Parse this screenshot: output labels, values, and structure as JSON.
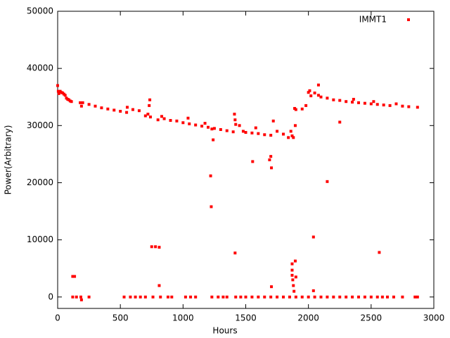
{
  "chart_data": {
    "type": "scatter",
    "x_label": "Hours",
    "y_label": "Power(Arbitrary)",
    "xlim": [
      0,
      3000
    ],
    "ylim": [
      -2000,
      50000
    ],
    "xticks": [
      0,
      500,
      1000,
      1500,
      2000,
      2500,
      3000
    ],
    "yticks": [
      0,
      10000,
      20000,
      30000,
      40000,
      50000
    ],
    "legend": "top-right",
    "x": [
      0,
      5,
      10,
      20,
      30,
      40,
      50,
      60,
      70,
      80,
      90,
      100,
      110,
      180,
      190,
      200,
      250,
      300,
      350,
      400,
      450,
      500,
      550,
      555,
      600,
      650,
      700,
      720,
      730,
      735,
      740,
      800,
      830,
      850,
      900,
      950,
      1000,
      1040,
      1050,
      1100,
      1150,
      1175,
      1200,
      1230,
      1250,
      1300,
      1350,
      1400,
      1410,
      1415,
      1420,
      1450,
      1480,
      1500,
      1550,
      1580,
      1600,
      1650,
      1700,
      1720,
      1750,
      1800,
      1840,
      1860,
      1870,
      1880,
      1890,
      1900,
      1950,
      1980,
      2000,
      2010,
      2020,
      2050,
      2080,
      2100,
      2150,
      2200,
      2250,
      2300,
      2350,
      2360,
      2400,
      2450,
      2500,
      2520,
      2550,
      2600,
      2650,
      2700,
      2750,
      2800,
      2870,
      120,
      135,
      1220,
      1225,
      1240,
      1415,
      1555,
      1690,
      1700,
      1705,
      1705,
      750,
      780,
      810,
      810,
      2040,
      2040,
      2150,
      2250,
      2565,
      2080,
      1870,
      1870,
      1870,
      1875,
      1880,
      1885,
      1895,
      1900,
      1895,
      120,
      150,
      185,
      190,
      250,
      530,
      580,
      620,
      660,
      700,
      760,
      820,
      880,
      910,
      1020,
      1060,
      1100,
      1230,
      1280,
      1320,
      1350,
      1420,
      1460,
      1500,
      1550,
      1600,
      1650,
      1700,
      1750,
      1800,
      1850,
      1900,
      1950,
      2000,
      2050,
      2100,
      2150,
      2200,
      2250,
      2300,
      2350,
      2400,
      2450,
      2500,
      2550,
      2590,
      2630,
      2680,
      2750,
      2850,
      2870
    ],
    "series": [
      {
        "name": "IMMT1",
        "color": "#ff0000",
        "values": [
          37000,
          36000,
          35600,
          36000,
          35800,
          35700,
          35500,
          35300,
          34800,
          34600,
          34500,
          34300,
          34200,
          34000,
          33400,
          34000,
          33700,
          33400,
          33100,
          32900,
          32700,
          32500,
          32300,
          33200,
          32800,
          32600,
          31700,
          32000,
          33500,
          34500,
          31500,
          31000,
          31600,
          31200,
          30900,
          30800,
          30500,
          31300,
          30300,
          30100,
          29900,
          30400,
          29700,
          29400,
          29500,
          29300,
          29100,
          28900,
          32000,
          31000,
          30200,
          30000,
          29000,
          28800,
          28700,
          29600,
          28600,
          28400,
          28300,
          30800,
          29000,
          28500,
          27900,
          29000,
          28200,
          27900,
          33000,
          32800,
          32900,
          33500,
          35800,
          36100,
          35200,
          35700,
          35300,
          35000,
          34800,
          34500,
          34400,
          34200,
          34100,
          34600,
          34000,
          33900,
          33800,
          34200,
          33700,
          33600,
          33500,
          33800,
          33400,
          33300,
          33200,
          3600,
          3600,
          21200,
          15800,
          27500,
          7700,
          23700,
          24000,
          24600,
          22600,
          1800,
          8800,
          8800,
          8700,
          2000,
          10500,
          1100,
          20200,
          30600,
          7800,
          37100,
          5800,
          4700,
          3800,
          3000,
          2000,
          1000,
          6300,
          3500,
          30000,
          0,
          0,
          0,
          -500,
          0,
          0,
          0,
          0,
          0,
          0,
          0,
          0,
          0,
          0,
          0,
          0,
          0,
          0,
          0,
          0,
          0,
          0,
          0,
          0,
          0,
          0,
          0,
          0,
          0,
          0,
          0,
          0,
          0,
          0,
          0,
          0,
          0,
          0,
          0,
          0,
          0,
          0,
          0,
          0,
          0,
          0,
          0,
          0,
          0,
          0,
          0
        ]
      }
    ]
  }
}
